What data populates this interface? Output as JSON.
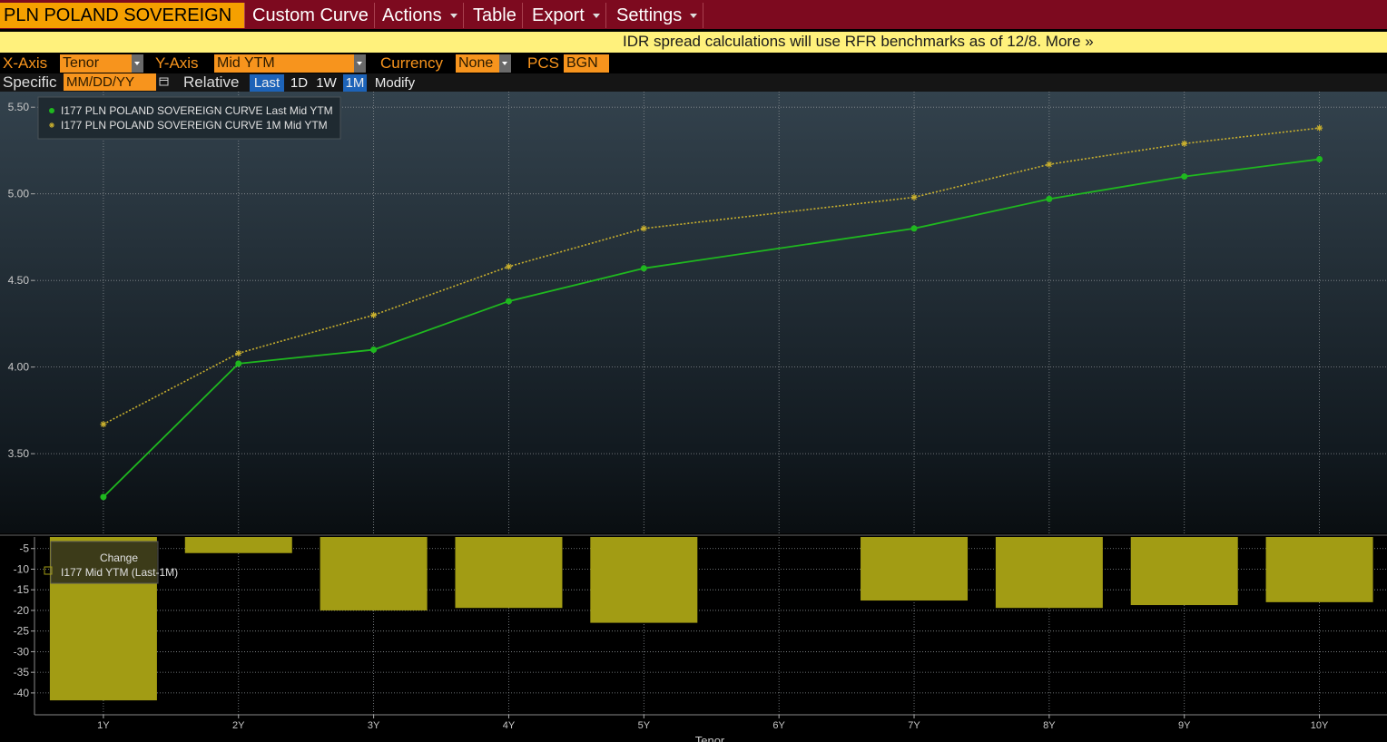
{
  "menu": {
    "source": "PLN POLAND SOVEREIGN CU",
    "items": [
      "Custom Curve",
      "Actions",
      "Table",
      "Export",
      "Settings"
    ]
  },
  "banner": "IDR spread calculations will use RFR benchmarks as of 12/8. More »",
  "controls": {
    "x_axis_label": "X-Axis",
    "x_axis_value": "Tenor",
    "y_axis_label": "Y-Axis",
    "y_axis_value": "Mid YTM",
    "currency_label": "Currency",
    "currency_value": "None",
    "pcs_label": "PCS",
    "pcs_value": "BGN",
    "specific_label": "Specific",
    "date_placeholder": "MM/DD/YY",
    "relative_label": "Relative",
    "relative_options": [
      "Last",
      "1D",
      "1W",
      "1M"
    ],
    "relative_active": [
      0,
      3
    ],
    "modify": "Modify"
  },
  "chart_data": [
    {
      "type": "line",
      "x": [
        1,
        2,
        3,
        4,
        5,
        7,
        8,
        9,
        10
      ],
      "series": [
        {
          "name": "I177 PLN POLAND SOVEREIGN CURVE Last Mid YTM",
          "color": "#1fb81f",
          "marker": "circle",
          "dash": false,
          "values": [
            3.25,
            4.02,
            4.1,
            4.38,
            4.57,
            4.8,
            4.97,
            5.1,
            5.2
          ]
        },
        {
          "name": "I177 PLN POLAND SOVEREIGN CURVE 1M Mid YTM",
          "color": "#c9b02e",
          "marker": "star",
          "dash": true,
          "values": [
            3.67,
            4.08,
            4.3,
            4.58,
            4.8,
            4.98,
            5.17,
            5.29,
            5.38
          ]
        }
      ],
      "xlim": [
        0.49,
        10.5
      ],
      "ylim": [
        3.04,
        5.59
      ],
      "yticks": [
        {
          "value": 3.5,
          "label": "3.50"
        },
        {
          "value": 4,
          "label": "4.00"
        },
        {
          "value": 4.5,
          "label": "4.50"
        },
        {
          "value": 5,
          "label": "5.00"
        },
        {
          "value": 5.5,
          "label": "5.50"
        }
      ],
      "grid": true,
      "legend": "upper left"
    },
    {
      "type": "bar",
      "x": [
        1,
        2,
        3,
        4,
        5,
        7,
        8,
        9,
        10
      ],
      "legend_title": "Change",
      "series": [
        {
          "name": "I177 Mid YTM (Last-1M)",
          "color": "#a29c14",
          "values": [
            -41.8,
            -6.1,
            -20.0,
            -19.4,
            -23.0,
            -17.6,
            -19.4,
            -18.7,
            -18.0
          ]
        }
      ],
      "xlim": [
        0.49,
        10.5
      ],
      "ylim": [
        -45.3,
        -2.2
      ],
      "yticks": [
        -40,
        -35,
        -30,
        -25,
        -20,
        -15,
        -10,
        -5
      ],
      "xticks": [
        {
          "value": 1,
          "label": "1Y"
        },
        {
          "value": 2,
          "label": "2Y"
        },
        {
          "value": 3,
          "label": "3Y"
        },
        {
          "value": 4,
          "label": "4Y"
        },
        {
          "value": 5,
          "label": "5Y"
        },
        {
          "value": 6,
          "label": "6Y"
        },
        {
          "value": 7,
          "label": "7Y"
        },
        {
          "value": 8,
          "label": "8Y"
        },
        {
          "value": 9,
          "label": "9Y"
        },
        {
          "value": 10,
          "label": "10Y"
        }
      ],
      "xlabel": "Tenor",
      "grid": true,
      "legend": "upper left"
    }
  ]
}
